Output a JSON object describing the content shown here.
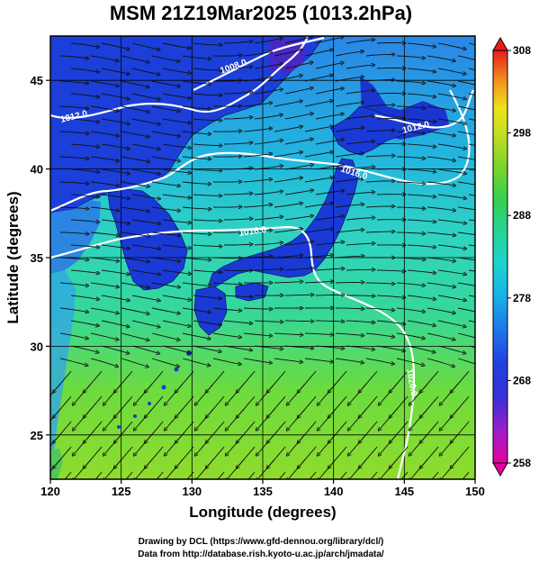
{
  "title": "MSM 21Z19Mar2025 (1013.2hPa)",
  "map": {
    "lon_range": [
      120,
      150
    ],
    "lat_range": [
      22.5,
      47.5
    ],
    "xlabel": "Longitude (degrees)",
    "ylabel": "Latitude  (degrees)",
    "x_ticks": [
      "120",
      "125",
      "130",
      "135",
      "140",
      "145",
      "150"
    ],
    "x_tick_values": [
      120,
      125,
      130,
      135,
      140,
      145,
      150
    ],
    "y_ticks": [
      "25",
      "30",
      "35",
      "40",
      "45"
    ],
    "y_tick_values": [
      25,
      30,
      35,
      40,
      45
    ],
    "grid": true,
    "field": "temperature (K) with wind streamlines and pressure contours",
    "contour_labels": [
      "1008.0",
      "1012.0",
      "1016.0",
      "1016.0",
      "1020.0",
      "1012.0"
    ],
    "colors": {
      "land": "#1a3ad6",
      "cold_sea": "#2fa6e8",
      "mid_sea": "#2fd3c7",
      "warm_sea": "#73dd3c",
      "contour": "#ffffff",
      "streamline": "#111111"
    }
  },
  "colorbar": {
    "min": 258,
    "max": 308,
    "tick_labels": [
      "308",
      "298",
      "288",
      "278",
      "268",
      "258"
    ],
    "tick_values": [
      308,
      298,
      288,
      278,
      268,
      258
    ],
    "colors": [
      "#e8008a",
      "#8a1ec8",
      "#2c33d8",
      "#1d73e6",
      "#19c6dc",
      "#28d28a",
      "#4ed13a",
      "#a6dc2a",
      "#e6e61e",
      "#f4b51e",
      "#f26a1e",
      "#e8201e"
    ]
  },
  "credits": {
    "line1": "Drawing by DCL (https://www.gfd-dennou.org/library/dcl/)",
    "line2": "Data from http://database.rish.kyoto-u.ac.jp/arch/jmadata/"
  }
}
